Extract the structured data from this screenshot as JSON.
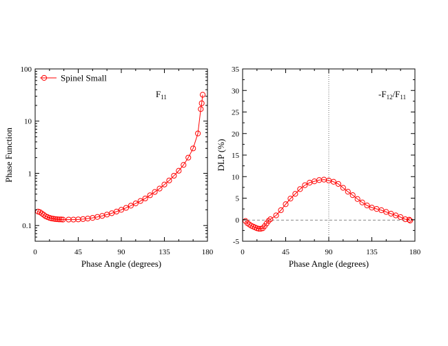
{
  "chart_data": [
    {
      "type": "line",
      "xlabel": "Phase Angle (degrees)",
      "ylabel": "Phase Function",
      "xlim": [
        0,
        180
      ],
      "ylim": [
        0.05,
        100
      ],
      "yscale": "log",
      "grid": false,
      "legend": {
        "placement": "top-left"
      },
      "xticks": [
        0,
        45,
        90,
        135,
        180
      ],
      "yticks": [
        0.1,
        1,
        10,
        100
      ],
      "ytick_labels": [
        "0.1",
        "1",
        "10",
        "100"
      ],
      "annotation": {
        "main": "F",
        "sub": "11"
      },
      "series": [
        {
          "name": "Spinel Small",
          "color": "#ff0000",
          "marker": "circle",
          "x": [
            3,
            5,
            7,
            9,
            11,
            13,
            15,
            17,
            19,
            21,
            23,
            25,
            27,
            29,
            35,
            40,
            45,
            50,
            55,
            60,
            65,
            70,
            75,
            80,
            85,
            90,
            95,
            100,
            105,
            110,
            115,
            120,
            125,
            130,
            135,
            140,
            145,
            150,
            155,
            160,
            165,
            170,
            173,
            174,
            175
          ],
          "y": [
            0.185,
            0.18,
            0.17,
            0.16,
            0.15,
            0.145,
            0.14,
            0.137,
            0.135,
            0.133,
            0.132,
            0.131,
            0.131,
            0.13,
            0.13,
            0.13,
            0.131,
            0.133,
            0.136,
            0.14,
            0.146,
            0.153,
            0.162,
            0.172,
            0.185,
            0.2,
            0.218,
            0.24,
            0.265,
            0.295,
            0.33,
            0.38,
            0.44,
            0.51,
            0.61,
            0.73,
            0.9,
            1.12,
            1.45,
            2.0,
            3.0,
            5.8,
            17,
            22,
            32
          ]
        }
      ]
    },
    {
      "type": "line",
      "xlabel": "Phase Angle (degrees)",
      "ylabel": "DLP (%)",
      "xlim": [
        0,
        180
      ],
      "ylim": [
        -5,
        35
      ],
      "grid": false,
      "xticks": [
        0,
        45,
        90,
        135,
        180
      ],
      "yticks": [
        -5,
        0,
        5,
        10,
        15,
        20,
        25,
        30,
        35
      ],
      "reference_lines": {
        "hline_y": 0,
        "vline_x": 90,
        "style": "dotted"
      },
      "annotation": {
        "pre": "-F",
        "sub1": "12",
        "mid": "/F",
        "sub2": "11"
      },
      "series": [
        {
          "name": "Spinel Small",
          "color": "#ff0000",
          "marker": "circle",
          "x": [
            3,
            5,
            7,
            9,
            11,
            13,
            15,
            17,
            19,
            21,
            23,
            25,
            27,
            29,
            35,
            40,
            45,
            50,
            55,
            60,
            65,
            70,
            75,
            80,
            85,
            90,
            95,
            100,
            105,
            110,
            115,
            120,
            125,
            130,
            135,
            140,
            145,
            150,
            155,
            160,
            165,
            170,
            174,
            175
          ],
          "y": [
            -0.3,
            -0.8,
            -1.1,
            -1.4,
            -1.6,
            -1.8,
            -2.0,
            -2.1,
            -2.1,
            -2.0,
            -1.5,
            -0.9,
            -0.3,
            0.1,
            1.0,
            2.2,
            3.6,
            4.9,
            6.0,
            7.1,
            8.0,
            8.6,
            8.9,
            9.2,
            9.3,
            9.1,
            8.8,
            8.3,
            7.4,
            6.5,
            5.7,
            4.8,
            4.0,
            3.3,
            2.8,
            2.5,
            2.2,
            1.8,
            1.4,
            1.0,
            0.6,
            0.1,
            0.0,
            -0.2
          ]
        }
      ]
    }
  ]
}
